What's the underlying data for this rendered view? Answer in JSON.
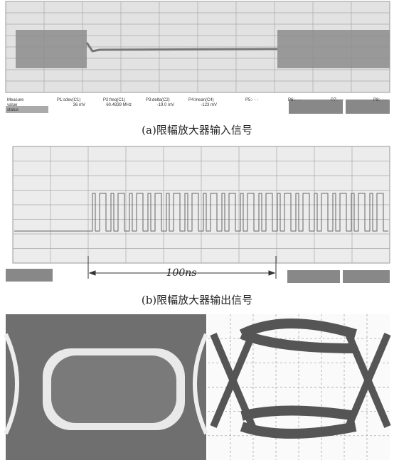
{
  "panel_a": {
    "measure": {
      "row_labels": [
        "Measure",
        "value",
        "status"
      ],
      "params": [
        {
          "name": "P1:sdev(C1)",
          "value": "36 mV"
        },
        {
          "name": "P2:freq(C1)",
          "value": "60.4839 MHz"
        },
        {
          "name": "P3:delta(C2)",
          "value": "-19.0 mV"
        },
        {
          "name": "P4:mean(C4)",
          "value": "-123 mV"
        },
        {
          "name": "P5:- - -"
        },
        {
          "name": "P6:- - -"
        },
        {
          "name": "P7:- - -"
        },
        {
          "name": "P8:- - -"
        }
      ]
    },
    "caption": "(a)限幅放大器输入信号"
  },
  "panel_b": {
    "time_span": "100ns",
    "caption": "(b)限幅放大器输出信号"
  }
}
